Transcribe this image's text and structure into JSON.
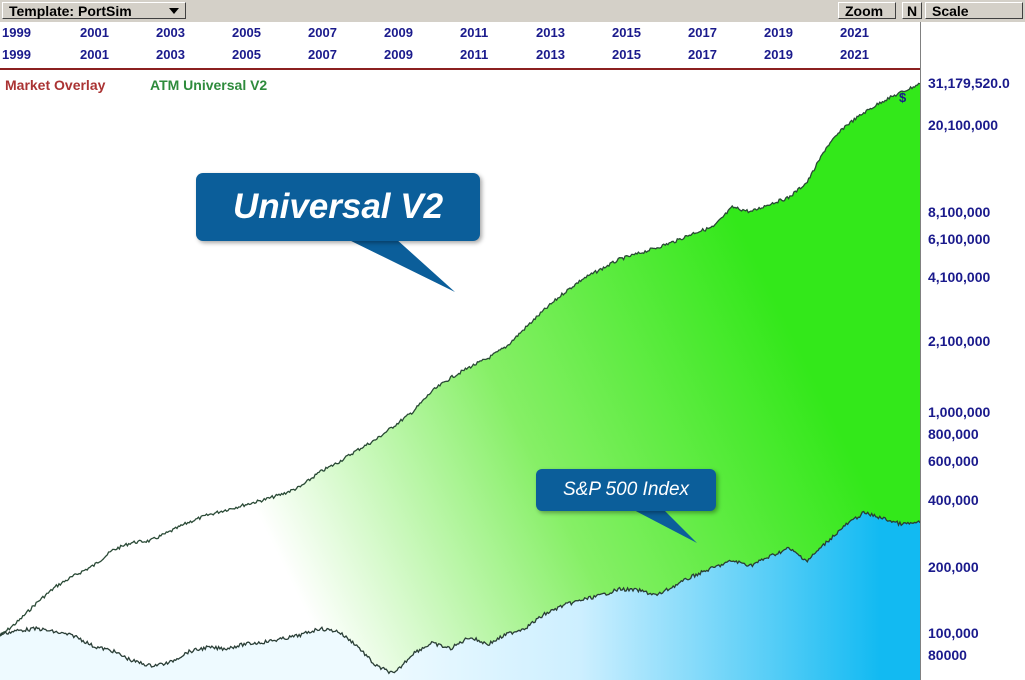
{
  "toolbar": {
    "template_label": "Template: PortSim",
    "zoom_label": "Zoom",
    "n_label": "N",
    "scale_label": "Scale"
  },
  "legend": {
    "market": "Market Overlay",
    "atm": "ATM Universal V2"
  },
  "currency_symbol": "$",
  "callouts": {
    "strategy": "Universal V2",
    "index": "S&P 500 Index"
  },
  "colors": {
    "strategy_fill": "#33e81a",
    "index_fill": "#12baf2",
    "line": "#2a4a36",
    "callout_bg": "#0b5e9a",
    "axis_text": "#1a1a8c"
  },
  "chart_data": {
    "type": "area",
    "y_scale": "log",
    "ylim": [
      62000,
      36000000
    ],
    "x_range": [
      1998.5,
      2023.0
    ],
    "year_labels": [
      "1999",
      "2001",
      "2003",
      "2005",
      "2007",
      "2009",
      "2011",
      "2013",
      "2015",
      "2017",
      "2019",
      "2021"
    ],
    "y_tick_labels": [
      {
        "label": "31,179,520.0",
        "value": 31179520
      },
      {
        "label": "20,100,000",
        "value": 20100000
      },
      {
        "label": "8,100,000",
        "value": 8100000
      },
      {
        "label": "6,100,000",
        "value": 6100000
      },
      {
        "label": "4,100,000",
        "value": 4100000
      },
      {
        "label": "2,100,000",
        "value": 2100000
      },
      {
        "label": "1,000,000",
        "value": 1000000
      },
      {
        "label": "800,000",
        "value": 800000
      },
      {
        "label": "600,000",
        "value": 600000
      },
      {
        "label": "400,000",
        "value": 400000
      },
      {
        "label": "200,000",
        "value": 200000
      },
      {
        "label": "100,000",
        "value": 100000
      },
      {
        "label": "80000",
        "value": 80000
      }
    ],
    "series": [
      {
        "name": "ATM Universal V2",
        "x": [
          1998.5,
          1999.0,
          1999.5,
          2000.0,
          2000.5,
          2001.0,
          2001.5,
          2002.0,
          2002.5,
          2003.0,
          2003.5,
          2004.0,
          2004.5,
          2005.0,
          2005.5,
          2006.0,
          2006.5,
          2007.0,
          2007.5,
          2008.0,
          2008.5,
          2009.0,
          2009.5,
          2010.0,
          2010.5,
          2011.0,
          2011.5,
          2012.0,
          2012.5,
          2013.0,
          2013.5,
          2014.0,
          2014.5,
          2015.0,
          2015.5,
          2016.0,
          2016.5,
          2017.0,
          2017.5,
          2018.0,
          2018.5,
          2019.0,
          2019.5,
          2020.0,
          2020.5,
          2021.0,
          2021.5,
          2022.0,
          2022.5,
          2023.0
        ],
        "values": [
          98000,
          115000,
          140000,
          165000,
          185000,
          205000,
          240000,
          260000,
          265000,
          290000,
          320000,
          345000,
          365000,
          385000,
          405000,
          430000,
          465000,
          540000,
          600000,
          680000,
          760000,
          880000,
          1020000,
          1260000,
          1450000,
          1620000,
          1780000,
          2020000,
          2450000,
          2950000,
          3500000,
          4050000,
          4500000,
          5000000,
          5300000,
          5650000,
          6050000,
          6600000,
          7000000,
          8600000,
          8200000,
          8900000,
          9500000,
          11200000,
          16000000,
          20000000,
          23000000,
          26000000,
          28500000,
          31179520
        ]
      },
      {
        "name": "S&P 500 Index",
        "x": [
          1998.5,
          1999.0,
          1999.5,
          2000.0,
          2000.5,
          2001.0,
          2001.5,
          2002.0,
          2002.5,
          2003.0,
          2003.5,
          2004.0,
          2004.5,
          2005.0,
          2005.5,
          2006.0,
          2006.5,
          2007.0,
          2007.5,
          2008.0,
          2008.5,
          2009.0,
          2009.5,
          2010.0,
          2010.5,
          2011.0,
          2011.5,
          2012.0,
          2012.5,
          2013.0,
          2013.5,
          2014.0,
          2014.5,
          2015.0,
          2015.5,
          2016.0,
          2016.5,
          2017.0,
          2017.5,
          2018.0,
          2018.5,
          2019.0,
          2019.5,
          2020.0,
          2020.5,
          2021.0,
          2021.5,
          2022.0,
          2022.5,
          2023.0
        ],
        "values": [
          100000,
          104000,
          106000,
          102000,
          98000,
          88000,
          84000,
          76000,
          72000,
          74000,
          83000,
          87000,
          86000,
          90000,
          92000,
          95000,
          99000,
          106000,
          103000,
          89000,
          72000,
          66000,
          82000,
          91000,
          86000,
          97000,
          90000,
          100000,
          107000,
          123000,
          135000,
          143000,
          150000,
          160000,
          158000,
          150000,
          167000,
          185000,
          200000,
          215000,
          205000,
          225000,
          245000,
          215000,
          260000,
          310000,
          355000,
          335000,
          315000,
          320000
        ]
      }
    ]
  }
}
